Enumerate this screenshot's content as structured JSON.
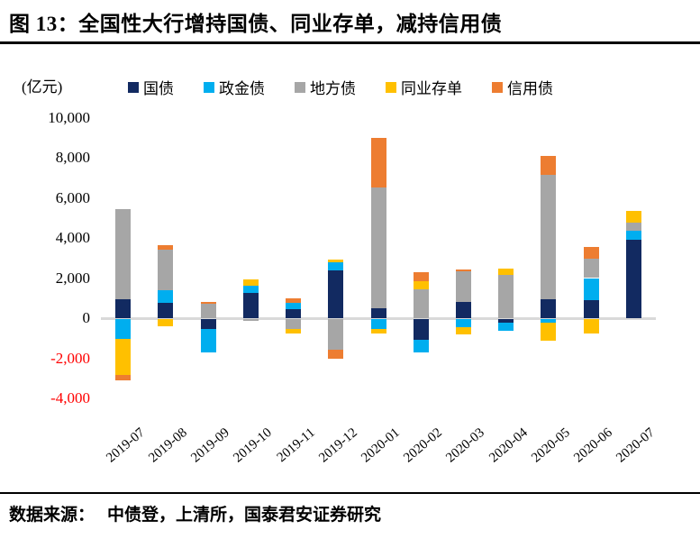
{
  "header": {
    "title": "图 13：全国性大行增持国债、同业存单，减持信用债"
  },
  "footer": {
    "source_label": "数据来源：",
    "source_body": "中债登，上清所，国泰君安证券研究"
  },
  "colors": {
    "treasury_navy": "#122a61",
    "policy_bank_blue": "#00aeef",
    "local_gov_gray": "#a6a6a6",
    "ncd_yellow": "#ffc000",
    "credit_orange": "#ed7d31",
    "zero_axis_gray": "#d9d9d9",
    "negative_tick_red": "#ff0000",
    "rule_black": "#000000"
  },
  "chart_data": {
    "type": "bar",
    "stacked": true,
    "title": "全国性大行增持国债、同业存单，减持信用债",
    "ylabel": "(亿元)",
    "xlabel": "",
    "ylim": [
      -4000,
      10000
    ],
    "ytick_interval": 2000,
    "grid": false,
    "legend_position": "top",
    "categories": [
      "2019-07",
      "2019-08",
      "2019-09",
      "2019-10",
      "2019-11",
      "2019-12",
      "2020-01",
      "2020-02",
      "2020-03",
      "2020-04",
      "2020-05",
      "2020-06",
      "2020-07"
    ],
    "series": [
      {
        "name": "国债",
        "color": "#122a61",
        "values": [
          950,
          750,
          -500,
          1270,
          450,
          2400,
          500,
          -1050,
          800,
          -200,
          960,
          890,
          3900
        ]
      },
      {
        "name": "政金债",
        "color": "#00aeef",
        "values": [
          -1000,
          650,
          -1150,
          330,
          330,
          400,
          -500,
          -600,
          -400,
          -400,
          -170,
          1110,
          460
        ]
      },
      {
        "name": "地方债",
        "color": "#a6a6a6",
        "values": [
          4500,
          2000,
          700,
          -100,
          -500,
          -1550,
          6000,
          1450,
          1550,
          2160,
          6180,
          960,
          400
        ]
      },
      {
        "name": "同业存单",
        "color": "#ffc000",
        "values": [
          -1800,
          -350,
          0,
          350,
          -220,
          100,
          -200,
          400,
          -360,
          320,
          -900,
          -740,
          600
        ]
      },
      {
        "name": "信用债",
        "color": "#ed7d31",
        "values": [
          -250,
          250,
          130,
          0,
          200,
          -450,
          2500,
          430,
          90,
          0,
          930,
          570,
          0
        ]
      }
    ]
  }
}
